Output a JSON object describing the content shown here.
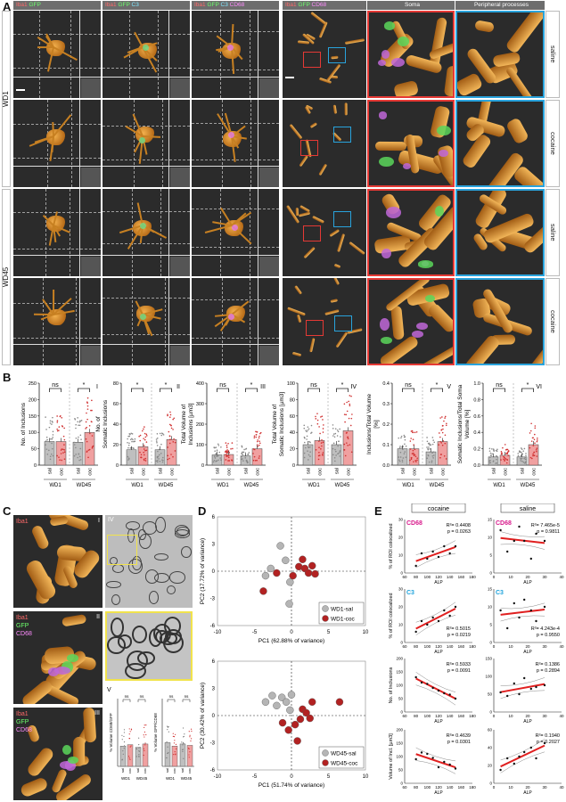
{
  "panels": {
    "A": "A",
    "B": "B",
    "C": "C",
    "D": "D",
    "E": "E"
  },
  "panelA": {
    "headers_left": [
      {
        "parts": [
          {
            "t": "Iba1 ",
            "c": "r"
          },
          {
            "t": "GFP",
            "c": "g"
          }
        ]
      },
      {
        "parts": [
          {
            "t": "Iba1 ",
            "c": "r"
          },
          {
            "t": "GFP ",
            "c": "g"
          },
          {
            "t": "C3",
            "c": "c"
          }
        ]
      },
      {
        "parts": [
          {
            "t": "Iba1 ",
            "c": "r"
          },
          {
            "t": "GFP ",
            "c": "g"
          },
          {
            "t": "C3 ",
            "c": "c"
          },
          {
            "t": "CD68",
            "c": "m"
          }
        ]
      }
    ],
    "header_right_main": [
      {
        "t": "Iba1 ",
        "c": "r"
      },
      {
        "t": "GFP ",
        "c": "g"
      },
      {
        "t": "CD68",
        "c": "m"
      }
    ],
    "header_soma": "Soma",
    "header_peripheral": "Peripheral processes",
    "row_groups": [
      "WD1",
      "WD45"
    ],
    "conditions": [
      "saline",
      "cocaine",
      "saline",
      "cocaine"
    ]
  },
  "panelB": {
    "charts": [
      {
        "roman": "I",
        "ylabel": "No. of Inclusions",
        "yticks": [
          "0",
          "50",
          "100",
          "150",
          "200",
          "250"
        ],
        "ymax": 250,
        "means": [
          72,
          72,
          70,
          100
        ],
        "sig": [
          "ns",
          "*"
        ]
      },
      {
        "roman": "II",
        "ylabel": "No. of Somatic Inclusions",
        "yticks": [
          "0",
          "20",
          "40",
          "60",
          "80"
        ],
        "ymax": 80,
        "means": [
          15,
          18,
          15,
          25
        ],
        "sig": [
          "*",
          "*"
        ]
      },
      {
        "roman": "III",
        "ylabel": "Total Volume of Inclusions [µm3]",
        "yticks": [
          "0",
          "100",
          "200",
          "300",
          "400"
        ],
        "ymax": 400,
        "means": [
          50,
          52,
          45,
          80
        ],
        "sig": [
          "ns",
          "*"
        ]
      },
      {
        "roman": "IV",
        "ylabel": "Total Volume of Somatic Inclusions [µm3]",
        "yticks": [
          "0",
          "20",
          "40",
          "60",
          "80",
          "100"
        ],
        "ymax": 100,
        "means": [
          25,
          30,
          25,
          42
        ],
        "sig": [
          "ns",
          "*"
        ]
      },
      {
        "roman": "V",
        "ylabel": "Inclusions/Total Volume [%]",
        "yticks": [
          "0.0",
          "0.1",
          "0.2",
          "0.3",
          "0.4"
        ],
        "ymax": 0.4,
        "means": [
          0.08,
          0.08,
          0.065,
          0.115
        ],
        "sig": [
          "ns",
          "*"
        ]
      },
      {
        "roman": "VI",
        "ylabel": "Somatic Inclusions/Total Soma Volume [%]",
        "yticks": [
          "0.0",
          "0.2",
          "0.4",
          "0.6",
          "0.8",
          "1.0"
        ],
        "ymax": 1.0,
        "means": [
          0.1,
          0.12,
          0.1,
          0.25
        ],
        "sig": [
          "ns",
          "*"
        ]
      }
    ],
    "bar_labels": [
      "sal",
      "coc",
      "sal",
      "coc"
    ],
    "group_labels": [
      "WD1",
      "WD45"
    ]
  },
  "panelC": {
    "roman": [
      "I",
      "II",
      "III",
      "IV",
      "V"
    ],
    "rows": [
      {
        "lines": [
          {
            "t": "Iba1",
            "c": "#ff6a6a"
          }
        ]
      },
      {
        "lines": [
          {
            "t": "Iba1",
            "c": "#ff6a6a"
          },
          {
            "t": "GFP",
            "c": "#6cff6c"
          },
          {
            "t": "CD68",
            "c": "#ff8cff"
          }
        ]
      },
      {
        "lines": [
          {
            "t": "Iba1",
            "c": "#ff6a6a"
          },
          {
            "t": "GFP",
            "c": "#6cff6c"
          },
          {
            "t": "CD68",
            "c": "#ff8cff"
          }
        ]
      }
    ],
    "mini_charts": [
      {
        "ylabel": "% Volume CD68/GFP",
        "sig": [
          "ns",
          "ns"
        ],
        "means": [
          30,
          32,
          28,
          33
        ]
      },
      {
        "ylabel": "% Volume GFP/CD68",
        "sig": [
          "ns",
          "ns"
        ],
        "means": [
          35,
          30,
          33,
          31
        ]
      }
    ],
    "mini_bar_labels": [
      "sal",
      "coc",
      "sal",
      "coc"
    ],
    "mini_group_labels": [
      "WD1",
      "WD45"
    ]
  },
  "chart_data": [
    {
      "type": "scatter",
      "xlabel": "PC1 (62.88% of variance)",
      "ylabel": "PC2 (17.72% of variance)",
      "xlim": [
        -10,
        10
      ],
      "ylim": [
        -6,
        6
      ],
      "xticks": [
        "-10",
        "-5",
        "0",
        "5",
        "10"
      ],
      "yticks": [
        "-6",
        "-3",
        "0",
        "3",
        "6"
      ],
      "series": [
        {
          "name": "WD1-sal",
          "color": "#b5b5b5",
          "points": [
            [
              -3.5,
              -0.5
            ],
            [
              -2.8,
              0.3
            ],
            [
              -1.5,
              2.8
            ],
            [
              -0.8,
              1.2
            ],
            [
              -0.3,
              -3.6
            ],
            [
              -0.2,
              -1.2
            ]
          ]
        },
        {
          "name": "WD1-coc",
          "color": "#b22222",
          "points": [
            [
              -3.8,
              -2.2
            ],
            [
              -2.0,
              -0.2
            ],
            [
              0.2,
              -0.5
            ],
            [
              1.0,
              0.5
            ],
            [
              1.5,
              1.3
            ],
            [
              1.8,
              0.3
            ],
            [
              2.3,
              -0.2
            ],
            [
              2.8,
              0.6
            ],
            [
              3.2,
              -0.3
            ]
          ]
        }
      ],
      "legend": "bottom-right"
    },
    {
      "type": "scatter",
      "xlabel": "PC1 (51.74% of variance)",
      "ylabel": "PC2 (30.42% of variance)",
      "xlim": [
        -10,
        10
      ],
      "ylim": [
        -6,
        6
      ],
      "xticks": [
        "-10",
        "-5",
        "0",
        "5",
        "10"
      ],
      "yticks": [
        "-6",
        "-3",
        "0",
        "3",
        "6"
      ],
      "series": [
        {
          "name": "WD45-sal",
          "color": "#b5b5b5",
          "points": [
            [
              -3.5,
              1.5
            ],
            [
              -2.6,
              2.2
            ],
            [
              -2.0,
              1.1
            ],
            [
              -1.3,
              2.0
            ],
            [
              -0.7,
              1.5
            ],
            [
              0.0,
              2.3
            ],
            [
              -0.2,
              0.6
            ]
          ]
        },
        {
          "name": "WD45-coc",
          "color": "#b22222",
          "points": [
            [
              -1.2,
              -0.8
            ],
            [
              -0.4,
              -1.6
            ],
            [
              0.5,
              -1.0
            ],
            [
              0.8,
              -2.8
            ],
            [
              1.2,
              -0.4
            ],
            [
              1.5,
              0.7
            ],
            [
              2.0,
              0.3
            ],
            [
              2.5,
              -0.3
            ],
            [
              2.8,
              1.5
            ],
            [
              6.5,
              1.5
            ]
          ]
        }
      ],
      "legend": "bottom-right"
    },
    {
      "type": "scatter",
      "title": "cocaine",
      "label": "CD68",
      "ylabel": "% of ROI colocalized",
      "xlabel": "ALP",
      "xlim": [
        60,
        180
      ],
      "ylim": [
        0,
        30
      ],
      "xticks": [
        "60",
        "80",
        "100",
        "120",
        "140",
        "160",
        "180"
      ],
      "yticks": [
        "0",
        "10",
        "20",
        "30"
      ],
      "points": [
        [
          80,
          4
        ],
        [
          90,
          11
        ],
        [
          100,
          8
        ],
        [
          110,
          12
        ],
        [
          120,
          9
        ],
        [
          130,
          15
        ],
        [
          140,
          11
        ],
        [
          150,
          15
        ]
      ],
      "r2": "R²= 0.4408",
      "p": "p = 0.0263"
    },
    {
      "type": "scatter",
      "title": "saline",
      "label": "CD68",
      "ylabel": "",
      "xlabel": "ALP",
      "xlim": [
        0,
        40
      ],
      "ylim": [
        0,
        15
      ],
      "xticks": [
        "0",
        "10",
        "20",
        "30",
        "40"
      ],
      "yticks": [
        "0",
        "5",
        "10",
        "15"
      ],
      "points": [
        [
          4,
          12
        ],
        [
          8,
          6
        ],
        [
          12,
          9
        ],
        [
          15,
          13
        ],
        [
          18,
          9
        ],
        [
          22,
          4
        ],
        [
          25,
          11
        ],
        [
          30,
          9
        ]
      ],
      "r2": "R²= 7.465e-5",
      "p": "p = 0.9811"
    },
    {
      "type": "scatter",
      "label": "C3",
      "ylabel": "% of ROI colocalized",
      "xlabel": "ALP",
      "xlim": [
        60,
        180
      ],
      "ylim": [
        0,
        30
      ],
      "xticks": [
        "60",
        "80",
        "100",
        "120",
        "140",
        "160",
        "180"
      ],
      "yticks": [
        "0",
        "10",
        "20",
        "30"
      ],
      "points": [
        [
          80,
          6
        ],
        [
          90,
          12
        ],
        [
          100,
          10
        ],
        [
          110,
          14
        ],
        [
          120,
          12
        ],
        [
          130,
          18
        ],
        [
          140,
          15
        ],
        [
          150,
          20
        ]
      ],
      "r2": "R²= 0.5015",
      "p": "p = 0.0219"
    },
    {
      "type": "scatter",
      "label": "C3",
      "ylabel": "",
      "xlabel": "ALP",
      "xlim": [
        0,
        40
      ],
      "ylim": [
        0,
        15
      ],
      "xticks": [
        "0",
        "10",
        "20",
        "30",
        "40"
      ],
      "yticks": [
        "0",
        "5",
        "10",
        "15"
      ],
      "points": [
        [
          4,
          9
        ],
        [
          8,
          4
        ],
        [
          12,
          11
        ],
        [
          15,
          7
        ],
        [
          18,
          12
        ],
        [
          22,
          9
        ],
        [
          25,
          6
        ],
        [
          30,
          10
        ]
      ],
      "r2": "R²= 4.243e-4",
      "p": "p = 0.9550"
    },
    {
      "type": "scatter",
      "ylabel": "No. of Inclusions",
      "xlabel": "ALP",
      "xlim": [
        60,
        180
      ],
      "ylim": [
        0,
        200
      ],
      "xticks": [
        "60",
        "80",
        "100",
        "120",
        "140",
        "160",
        "180"
      ],
      "yticks": [
        "0",
        "50",
        "100",
        "150",
        "200"
      ],
      "points": [
        [
          80,
          130
        ],
        [
          90,
          110
        ],
        [
          100,
          105
        ],
        [
          110,
          90
        ],
        [
          120,
          80
        ],
        [
          130,
          70
        ],
        [
          140,
          65
        ],
        [
          150,
          50
        ]
      ],
      "r2": "R²= 0.5933",
      "p": "p = 0.0091"
    },
    {
      "type": "scatter",
      "ylabel": "",
      "xlabel": "ALP",
      "xlim": [
        0,
        40
      ],
      "ylim": [
        0,
        150
      ],
      "xticks": [
        "0",
        "10",
        "20",
        "30",
        "40"
      ],
      "yticks": [
        "0",
        "50",
        "100",
        "150"
      ],
      "points": [
        [
          4,
          55
        ],
        [
          8,
          45
        ],
        [
          12,
          80
        ],
        [
          15,
          50
        ],
        [
          18,
          95
        ],
        [
          22,
          65
        ],
        [
          25,
          70
        ],
        [
          30,
          75
        ]
      ],
      "r2": "R²= 0.1386",
      "p": "p = 0.2894"
    },
    {
      "type": "scatter",
      "ylabel": "Volume of Incl. [µm3]",
      "xlabel": "ALP",
      "xlim": [
        60,
        180
      ],
      "ylim": [
        0,
        200
      ],
      "xticks": [
        "60",
        "80",
        "100",
        "120",
        "140",
        "160",
        "180"
      ],
      "yticks": [
        "0",
        "50",
        "100",
        "150",
        "200"
      ],
      "points": [
        [
          80,
          90
        ],
        [
          90,
          115
        ],
        [
          100,
          110
        ],
        [
          110,
          95
        ],
        [
          120,
          60
        ],
        [
          130,
          80
        ],
        [
          140,
          70
        ],
        [
          150,
          55
        ]
      ],
      "r2": "R²= 0.4639",
      "p": "p = 0.0301"
    },
    {
      "type": "scatter",
      "ylabel": "",
      "xlabel": "ALP",
      "xlim": [
        0,
        40
      ],
      "ylim": [
        0,
        60
      ],
      "xticks": [
        "0",
        "10",
        "20",
        "30",
        "40"
      ],
      "yticks": [
        "0",
        "20",
        "40",
        "60"
      ],
      "points": [
        [
          4,
          15
        ],
        [
          8,
          28
        ],
        [
          12,
          22
        ],
        [
          15,
          30
        ],
        [
          18,
          35
        ],
        [
          22,
          40
        ],
        [
          25,
          28
        ],
        [
          30,
          45
        ]
      ],
      "r2": "R²= 0.1940",
      "p": "p = 0.2027"
    }
  ],
  "colors": {
    "gray": "#b5b5b5",
    "red": "#b22222",
    "fitline": "#e02020",
    "pinkbar": "#f0a0a0",
    "graybar": "#bfbfbf",
    "somaBorder": "#e53935",
    "periBorder": "#29a3dc",
    "darkbg": "#2b2b2b"
  }
}
